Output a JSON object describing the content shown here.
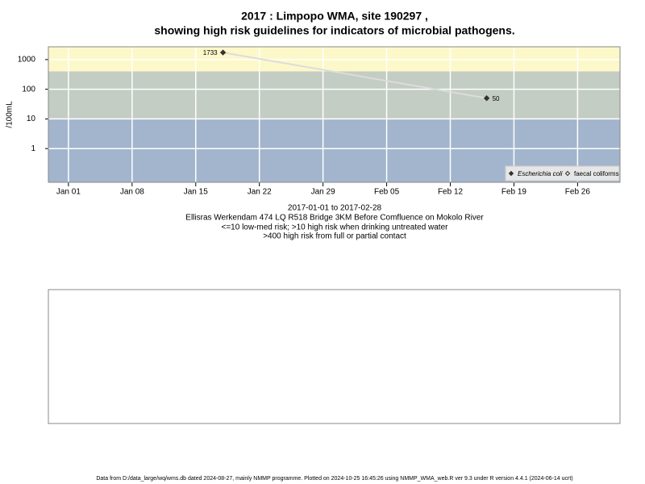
{
  "chart_data": {
    "type": "line",
    "title": [
      "2017 : Limpopo WMA, site 190297 ,",
      "showing high risk guidelines for indicators of microbial pathogens."
    ],
    "y_label": "/100mL",
    "log_y": true,
    "grid": true,
    "x": [
      "2017-01-18",
      "2017-02-16"
    ],
    "series": [
      {
        "name": "Escherichia coli",
        "color": "#333333",
        "line_color": "#dcdcdc",
        "marker": "filled-diamond",
        "values": [
          1733,
          50
        ],
        "value_labels": [
          "1733",
          "50"
        ]
      },
      {
        "name": "faecal coliforms",
        "color": "#333333",
        "marker": "open-diamond",
        "values": [
          null,
          null
        ]
      }
    ],
    "xlim": [
      "2016-12-29T19:00",
      "2017-03-02T16:00"
    ],
    "xticks": [
      {
        "value": "2017-01-01",
        "label": "Jan 01"
      },
      {
        "value": "2017-01-08",
        "label": "Jan 08"
      },
      {
        "value": "2017-01-15",
        "label": "Jan 15"
      },
      {
        "value": "2017-01-22",
        "label": "Jan 22"
      },
      {
        "value": "2017-01-29",
        "label": "Jan 29"
      },
      {
        "value": "2017-02-05",
        "label": "Feb 05"
      },
      {
        "value": "2017-02-12",
        "label": "Feb 12"
      },
      {
        "value": "2017-02-19",
        "label": "Feb 19"
      },
      {
        "value": "2017-02-26",
        "label": "Feb 26"
      }
    ],
    "ylim": [
      0.073,
      2700
    ],
    "yticks": [
      1,
      10,
      100,
      1000
    ],
    "bands": [
      {
        "to": 10,
        "color": "#a3b5cd"
      },
      {
        "from": 10,
        "to": 400,
        "color": "#c3cdc3"
      },
      {
        "from": 400,
        "color": "#fdf8c9"
      }
    ],
    "legend": "bottom-right",
    "notes": [
      "2017-01-01 to 2017-02-28",
      "Ellisras Werkendam 474 LQ R518 Bridge 3KM Before Comfluence on Mokolo River",
      "<=10 low-med risk; >10 high risk when drinking untreated water",
      ">400 high risk from full or partial contact"
    ],
    "footer": "Data from D:/data_large/wq/wms.db dated 2024-08-27, mainly NMMP programme. Plotted on 2024-10-25 16:45:26 using NMMP_WMA_web.R ver 9.3 under R version 4.4.1 (2024-06-14 ucrt)"
  }
}
